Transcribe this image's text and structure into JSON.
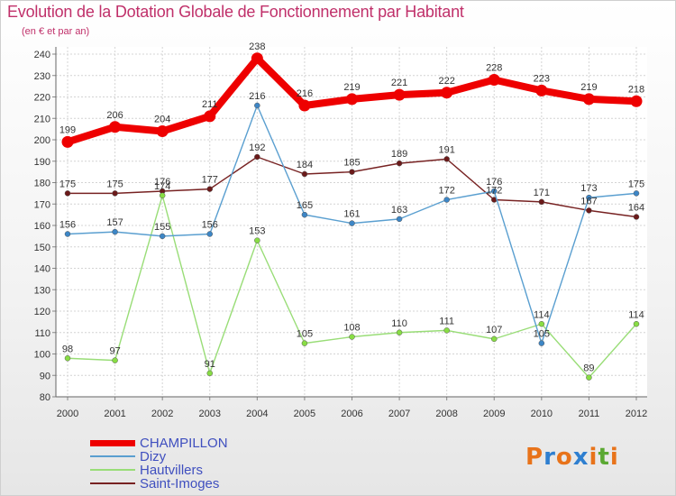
{
  "title": "Evolution de la Dotation Globale de Fonctionnement par Habitant",
  "subtitle": "(en € et par an)",
  "logo": {
    "letters": [
      "P",
      "r",
      "o",
      "x",
      "i",
      "t",
      "i"
    ],
    "colors": [
      "#e8731a",
      "#2e7fd0",
      "#e8731a",
      "#2e7fd0",
      "#e8731a",
      "#5aa832",
      "#e8731a"
    ]
  },
  "chart_data": {
    "type": "line",
    "title": "Evolution de la Dotation Globale de Fonctionnement par Habitant",
    "ylabel": "(en € et par an)",
    "xlabel": "",
    "x": [
      "2000",
      "2001",
      "2002",
      "2003",
      "2004",
      "2005",
      "2006",
      "2007",
      "2008",
      "2009",
      "2010",
      "2011",
      "2012"
    ],
    "ylim": [
      80,
      240
    ],
    "yticks": [
      "80",
      "90",
      "100",
      "110",
      "120",
      "130",
      "140",
      "150",
      "160",
      "170",
      "180",
      "190",
      "200",
      "210",
      "220",
      "230",
      "240"
    ],
    "grid": true,
    "legend_position": "bottom-left",
    "series": [
      {
        "name": "CHAMPILLON",
        "color": "#ee0000",
        "values": [
          199,
          206,
          204,
          211,
          238,
          216,
          219,
          221,
          222,
          228,
          223,
          219,
          218
        ],
        "labels": [
          "199",
          "206",
          "204",
          "211",
          "238",
          "216",
          "219",
          "221",
          "222",
          "228",
          "223",
          "219",
          "218"
        ]
      },
      {
        "name": "Dizy",
        "color": "#5a9fd0",
        "values": [
          156,
          157,
          155,
          156,
          216,
          165,
          161,
          163,
          172,
          176,
          105,
          173,
          175
        ],
        "labels": [
          "156",
          "157",
          "155",
          "156",
          "216",
          "165",
          "161",
          "163",
          "172",
          "176",
          "105",
          "173",
          "175"
        ]
      },
      {
        "name": "Hautvillers",
        "color": "#99dd77",
        "values": [
          98,
          97,
          174,
          91,
          153,
          105,
          108,
          110,
          111,
          107,
          114,
          89,
          114
        ],
        "labels": [
          "98",
          "97",
          "174",
          "91",
          "153",
          "105",
          "108",
          "110",
          "111",
          "107",
          "114",
          "89",
          "114"
        ]
      },
      {
        "name": "Saint-Imoges",
        "color": "#772222",
        "values": [
          175,
          175,
          176,
          177,
          192,
          184,
          185,
          189,
          191,
          172,
          171,
          167,
          164
        ],
        "labels": [
          "175",
          "175",
          "176",
          "177",
          "192",
          "184",
          "185",
          "189",
          "191",
          "172",
          "171",
          "167",
          "164"
        ]
      }
    ]
  }
}
